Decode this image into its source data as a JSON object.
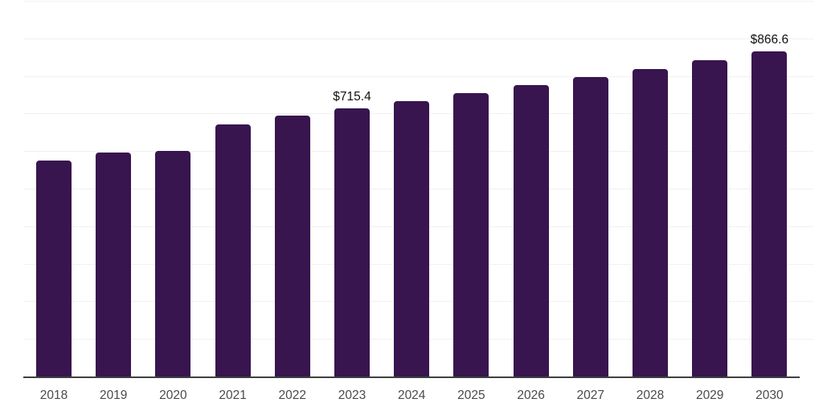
{
  "chart_data": {
    "type": "bar",
    "title": "",
    "xlabel": "",
    "ylabel": "",
    "categories": [
      "2018",
      "2019",
      "2020",
      "2021",
      "2022",
      "2023",
      "2024",
      "2025",
      "2026",
      "2027",
      "2028",
      "2029",
      "2030"
    ],
    "values": [
      577.6,
      599.0,
      603.2,
      673.0,
      695.6,
      715.4,
      735.3,
      755.8,
      776.9,
      798.5,
      820.8,
      843.7,
      866.6
    ],
    "labeled_points": [
      {
        "category": "2023",
        "label": "$715.4"
      },
      {
        "category": "2030",
        "label": "$866.6"
      }
    ],
    "value_prefix": "$",
    "ylim": [
      0,
      1000
    ],
    "grid_interval": 100,
    "grid_on": true,
    "legend_position": "none",
    "bar_color": "#38154E"
  },
  "colors": {
    "bar": "#38154E",
    "grid": "#F1F1F1",
    "axis_line": "#3F3F3F",
    "tick_text": "#4A4A4A",
    "label_text": "#111111",
    "background": "#FFFFFF"
  }
}
